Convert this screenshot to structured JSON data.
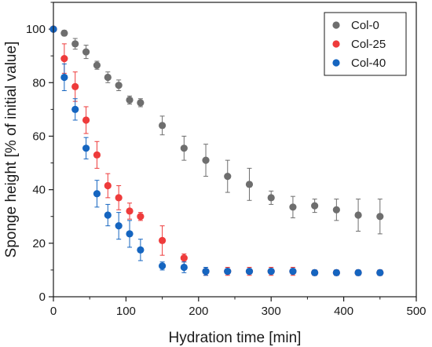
{
  "chart_data": {
    "type": "scatter",
    "xlabel": "Hydration time [min]",
    "ylabel": "Sponge height [% of initial value]",
    "xlim": [
      0,
      500
    ],
    "ylim": [
      0,
      110
    ],
    "x_ticks": [
      0,
      100,
      200,
      300,
      400,
      500
    ],
    "y_ticks": [
      0,
      20,
      40,
      60,
      80,
      100
    ],
    "x_tick_labels": [
      "0",
      "100",
      "200",
      "300",
      "400",
      "500"
    ],
    "y_tick_labels": [
      "0",
      "20",
      "40",
      "60",
      "80",
      "100"
    ],
    "grid": false,
    "legend_position": "top-right",
    "series": [
      {
        "name": "Col-0",
        "color": "#6e6e6e",
        "x": [
          0,
          15,
          30,
          45,
          60,
          75,
          90,
          105,
          120,
          150,
          180,
          210,
          240,
          270,
          300,
          330,
          360,
          390,
          420,
          450
        ],
        "y": [
          100,
          98.5,
          94.5,
          91.5,
          86.5,
          82,
          79,
          73.5,
          72.5,
          64,
          55.5,
          51,
          45,
          42,
          37,
          33.5,
          34,
          32.5,
          30.5,
          30
        ],
        "err": [
          0,
          1,
          2,
          2.5,
          1.5,
          2,
          2,
          1.5,
          1.5,
          3.5,
          4.5,
          6,
          6,
          6,
          2.5,
          4,
          2.5,
          4,
          6,
          6.5
        ]
      },
      {
        "name": "Col-25",
        "color": "#ee3b3b",
        "x": [
          0,
          15,
          30,
          45,
          60,
          75,
          90,
          105,
          120,
          150,
          180,
          210,
          240,
          270,
          300,
          330,
          360,
          390,
          420,
          450
        ],
        "y": [
          100,
          89,
          78.5,
          66,
          53,
          41.5,
          37,
          32,
          30,
          21,
          14.5,
          9.5,
          9.5,
          9.5,
          9.5,
          9.5,
          9,
          9,
          9,
          9
        ],
        "err": [
          0,
          5.5,
          5.5,
          5,
          5,
          4.5,
          4.5,
          3,
          1.5,
          5.5,
          1.5,
          1.5,
          1.5,
          1.5,
          1.5,
          1.5,
          1,
          1,
          1,
          1
        ]
      },
      {
        "name": "Col-40",
        "color": "#1565c0",
        "x": [
          0,
          15,
          30,
          45,
          60,
          75,
          90,
          105,
          120,
          150,
          180,
          210,
          240,
          270,
          300,
          330,
          360,
          390,
          420,
          450
        ],
        "y": [
          100,
          82,
          70,
          55.5,
          38.5,
          30.5,
          26.5,
          23.5,
          17.5,
          11.5,
          11,
          9.5,
          9.5,
          9.5,
          9.5,
          9.5,
          9,
          9,
          9,
          9
        ],
        "err": [
          0,
          5,
          4,
          4,
          5,
          4,
          5,
          5,
          4,
          1.5,
          2,
          1.5,
          1,
          1,
          1,
          1,
          1,
          1,
          1,
          1
        ]
      }
    ]
  }
}
